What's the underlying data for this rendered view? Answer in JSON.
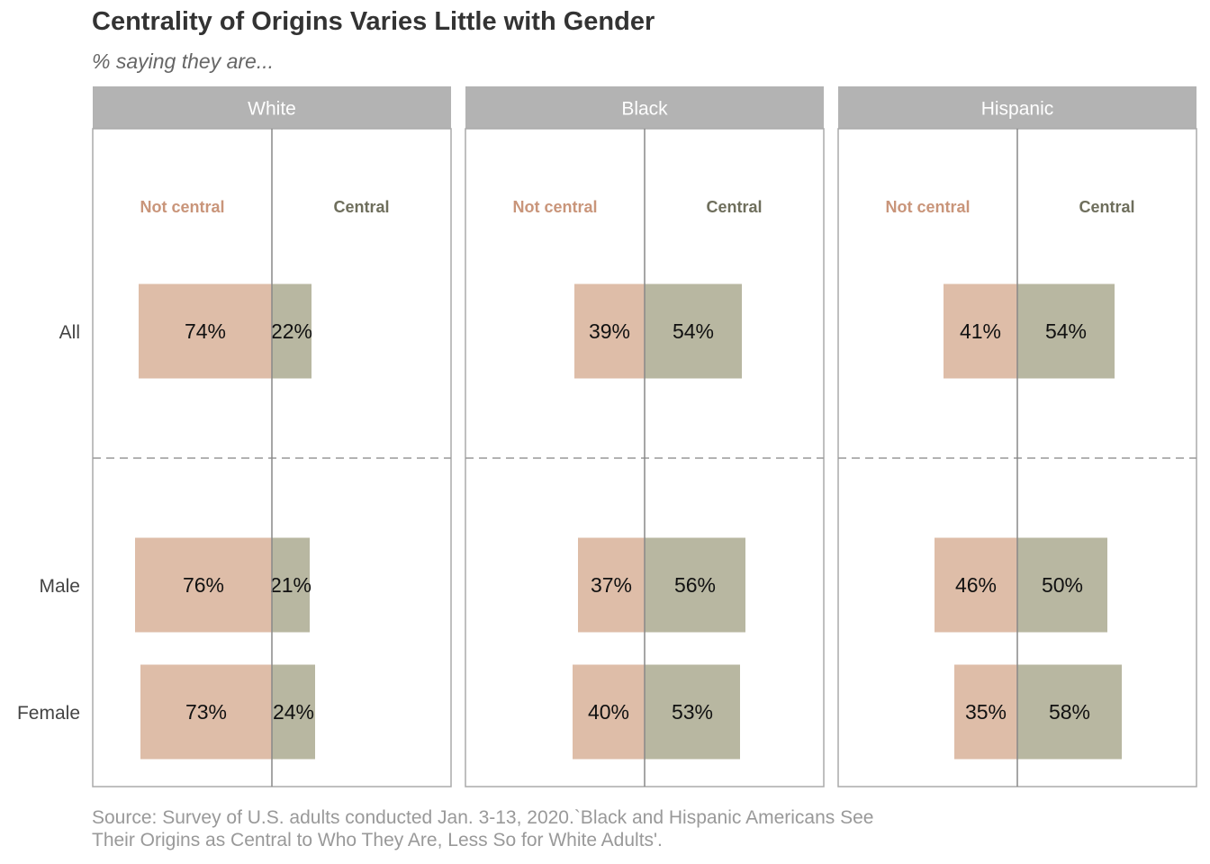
{
  "title": "Centrality of Origins Varies Little with Gender",
  "subtitle": "% saying they are...",
  "source": {
    "line1": "Source: Survey of U.S. adults conducted Jan. 3-13, 2020.`Black and Hispanic Americans See",
    "line2": "Their Origins as Central to Who They Are, Less So for White Adults'."
  },
  "colors": {
    "not_central": "#DEBDA8",
    "central": "#B8B7A1",
    "not_central_label": "#C9957A",
    "central_label": "#6E6E5C",
    "strip": "#B3B3B3",
    "frame": "#AAAAAA",
    "axis_line": "#888888"
  },
  "chart_data": {
    "type": "bar",
    "orientation": "horizontal-diverging",
    "panels": [
      "White",
      "Black",
      "Hispanic"
    ],
    "categories": [
      "All",
      "Male",
      "Female"
    ],
    "column_labels": {
      "left": "Not central",
      "right": "Central"
    },
    "series": [
      {
        "name": "Not central",
        "values": {
          "White": [
            74,
            76,
            73
          ],
          "Black": [
            39,
            37,
            40
          ],
          "Hispanic": [
            41,
            46,
            35
          ]
        }
      },
      {
        "name": "Central",
        "values": {
          "White": [
            22,
            21,
            24
          ],
          "Black": [
            54,
            56,
            53
          ],
          "Hispanic": [
            54,
            50,
            58
          ]
        }
      }
    ],
    "value_suffix": "%"
  }
}
